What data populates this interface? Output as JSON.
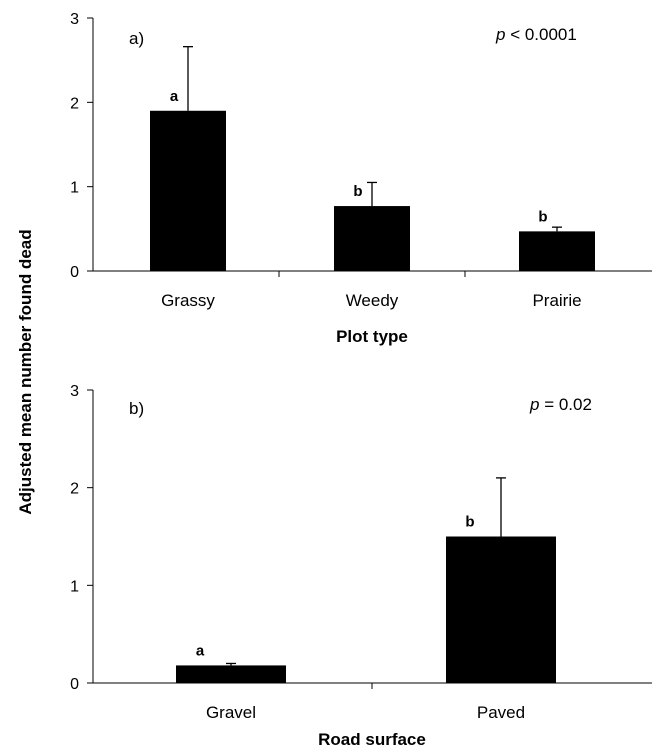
{
  "y_axis_label": "Adjusted mean number found dead",
  "chart_data": [
    {
      "type": "bar",
      "panel_label": "a)",
      "p_symbol": "p",
      "p_text": " < 0.0001",
      "categories": [
        "Grassy",
        "Weedy",
        "Prairie"
      ],
      "values": [
        1.9,
        0.77,
        0.47
      ],
      "error_upper": [
        2.66,
        1.05,
        0.52
      ],
      "significance_letters": [
        "a",
        "b",
        "b"
      ],
      "xlabel": "Plot type",
      "ylim": [
        0,
        3
      ],
      "yticks": [
        "0",
        "1",
        "2",
        "3"
      ],
      "bar_color": "#000000",
      "grid": false,
      "legend": "none"
    },
    {
      "type": "bar",
      "panel_label": "b)",
      "p_symbol": "p",
      "p_text": " = 0.02",
      "categories": [
        "Gravel",
        "Paved"
      ],
      "values": [
        0.18,
        1.5
      ],
      "error_upper": [
        0.2,
        2.1
      ],
      "significance_letters": [
        "a",
        "b"
      ],
      "xlabel": "Road surface",
      "ylim": [
        0,
        3
      ],
      "yticks": [
        "0",
        "1",
        "2",
        "3"
      ],
      "bar_color": "#000000",
      "grid": false,
      "legend": "none"
    }
  ]
}
